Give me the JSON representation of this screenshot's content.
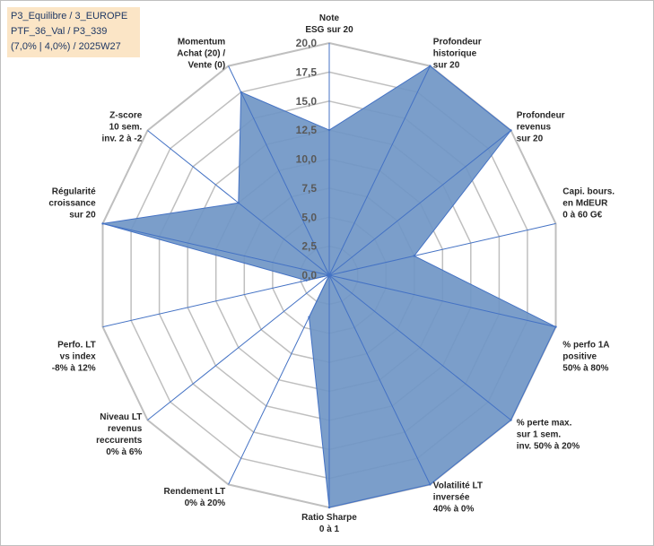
{
  "info_box": {
    "line1": "P3_Equilibre / 3_EUROPE",
    "line2": "PTF_36_Val / P3_339",
    "line3": "(7,0% | 4,0%) / 2025W27"
  },
  "colors": {
    "fill": "#7096c6",
    "stroke": "#4472c4",
    "grid": "#bfbfbf",
    "spoke": "#4472c4",
    "info_bg": "#fbe5c6"
  },
  "chart_data": {
    "type": "radar",
    "title": "",
    "r_range": [
      0,
      20
    ],
    "ticks": [
      "0,0",
      "2,5",
      "5,0",
      "7,5",
      "10,0",
      "12,5",
      "15,0",
      "17,5",
      "20,0"
    ],
    "tick_values": [
      0,
      2.5,
      5,
      7.5,
      10,
      12.5,
      15,
      17.5,
      20
    ],
    "grid": true,
    "categories": [
      [
        "Note",
        "ESG sur 20"
      ],
      [
        "Profondeur",
        "historique",
        "sur 20"
      ],
      [
        "Profondeur",
        "revenus",
        "sur 20"
      ],
      [
        "Capi. bours.",
        "en MdEUR",
        "0 à 60 G€"
      ],
      [
        "% perfo 1A",
        "positive",
        "50% à 80%"
      ],
      [
        "% perte max.",
        "sur 1 sem.",
        "inv. 50% à 20%"
      ],
      [
        "Volatilité LT",
        "inversée",
        "40% à 0%"
      ],
      [
        "Ratio Sharpe",
        "0 à 1"
      ],
      [
        "Rendement LT",
        "0% à 20%"
      ],
      [
        "Niveau LT",
        "revenus",
        "reccurents",
        "0% à 6%"
      ],
      [
        "Perfo. LT",
        "vs index",
        "-8% à 12%"
      ],
      [
        "Régularité",
        "croissance",
        "sur 20"
      ],
      [
        "Z-score",
        "10 sem.",
        "inv. 2 à -2"
      ],
      [
        "Momentum",
        "Achat (20) /",
        "Vente (0)"
      ]
    ],
    "series": [
      {
        "values": [
          12.5,
          20,
          20,
          7.5,
          20,
          20,
          20,
          20,
          4,
          0,
          2,
          20,
          10,
          17.5
        ]
      }
    ]
  }
}
